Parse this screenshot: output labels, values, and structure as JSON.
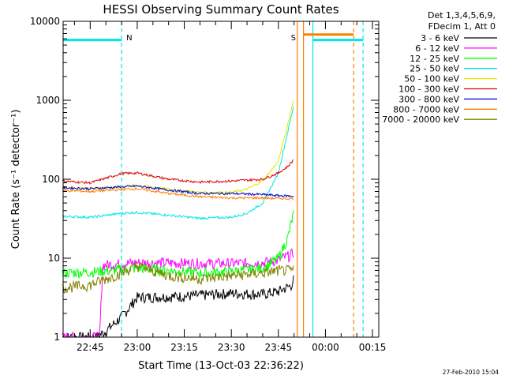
{
  "chart_data": {
    "type": "line",
    "title": "HESSI Observing Summary Count Rates",
    "xlabel": "Start Time (13-Oct-03 22:36:22)",
    "ylabel": "Count Rate (s⁻¹ detector⁻¹)",
    "y_scale": "log",
    "ylim": [
      1,
      10000
    ],
    "xlim": [
      "22:36:22",
      "00:17:00"
    ],
    "x_ticks": [
      "22:45",
      "23:00",
      "23:15",
      "23:30",
      "23:45",
      "00:00",
      "00:15"
    ],
    "y_ticks": [
      "1",
      "10",
      "100",
      "1000",
      "10000"
    ],
    "legend_header": [
      "Det 1,3,4,5,6,9,",
      "FDecim 1, Att 0"
    ],
    "legend_position": "right",
    "timestamp": "27-Feb-2010 15:04",
    "markers": [
      {
        "label": "N",
        "time": "22:55",
        "color": "#00e5e5"
      },
      {
        "label": "S",
        "time": "23:52",
        "color": "#ff8000"
      }
    ],
    "vertical_lines": [
      {
        "time": "22:55",
        "color": "#00e5e5",
        "style": "dashed"
      },
      {
        "time": "23:51",
        "color": "#ff8000",
        "style": "solid"
      },
      {
        "time": "23:53",
        "color": "#ff8000",
        "style": "solid"
      },
      {
        "time": "23:56",
        "color": "#00e5e5",
        "style": "solid"
      },
      {
        "time": "00:09",
        "color": "#ff8000",
        "style": "dashed"
      },
      {
        "time": "00:12",
        "color": "#00e5e5",
        "style": "dashed"
      }
    ],
    "flag_bars": [
      {
        "start": "22:36",
        "end": "22:55",
        "value": 5800,
        "color": "#00e5e5"
      },
      {
        "start": "23:53",
        "end": "00:09",
        "value": 6800,
        "color": "#ff8000"
      },
      {
        "start": "23:56",
        "end": "00:12",
        "value": 5800,
        "color": "#00e5e5"
      }
    ],
    "series": [
      {
        "name": "3 - 6 keV",
        "color": "#000000",
        "x": [
          "22:36",
          "22:47",
          "22:50",
          "22:55",
          "23:00",
          "23:15",
          "23:30",
          "23:40",
          "23:45",
          "23:49",
          "23:50"
        ],
        "y": [
          1,
          1,
          1.2,
          1.8,
          3.2,
          3.3,
          3.6,
          3.5,
          3.8,
          4.5,
          5.5
        ]
      },
      {
        "name": "6 - 12 keV",
        "color": "#ff00ff",
        "x": [
          "22:36",
          "22:48",
          "22:49",
          "23:00",
          "23:15",
          "23:30",
          "23:40",
          "23:45",
          "23:49",
          "23:50"
        ],
        "y": [
          1,
          1,
          8.2,
          8.8,
          8.7,
          8.6,
          8.8,
          9.5,
          11,
          12
        ]
      },
      {
        "name": "12 - 25 keV",
        "color": "#00ff00",
        "x": [
          "22:36",
          "22:45",
          "22:55",
          "23:00",
          "23:10",
          "23:20",
          "23:30",
          "23:40",
          "23:45",
          "23:48",
          "23:50"
        ],
        "y": [
          6.5,
          6.7,
          7.2,
          7.5,
          7.0,
          6.5,
          6.8,
          7.5,
          10,
          18,
          40
        ]
      },
      {
        "name": "25 - 50 keV",
        "color": "#00e5e5",
        "x": [
          "22:36",
          "22:45",
          "22:55",
          "23:00",
          "23:10",
          "23:20",
          "23:30",
          "23:35",
          "23:40",
          "23:45",
          "23:48",
          "23:50"
        ],
        "y": [
          34,
          33,
          37,
          38,
          35,
          32,
          33,
          37,
          50,
          120,
          400,
          900
        ]
      },
      {
        "name": "50 - 100 keV",
        "color": "#e5e500",
        "x": [
          "22:36",
          "22:45",
          "22:55",
          "23:00",
          "23:10",
          "23:20",
          "23:30",
          "23:35",
          "23:40",
          "23:45",
          "23:48",
          "23:50"
        ],
        "y": [
          78,
          76,
          80,
          83,
          75,
          68,
          68,
          75,
          95,
          170,
          500,
          1100
        ]
      },
      {
        "name": "100 - 300 keV",
        "color": "#dd0000",
        "x": [
          "22:36",
          "22:45",
          "22:55",
          "23:00",
          "23:10",
          "23:20",
          "23:30",
          "23:40",
          "23:45",
          "23:48",
          "23:50"
        ],
        "y": [
          95,
          90,
          118,
          120,
          100,
          92,
          95,
          100,
          120,
          145,
          180
        ]
      },
      {
        "name": "300 - 800 keV",
        "color": "#0000cc",
        "x": [
          "22:36",
          "22:45",
          "22:55",
          "23:00",
          "23:10",
          "23:20",
          "23:30",
          "23:40",
          "23:45",
          "23:50"
        ],
        "y": [
          78,
          76,
          80,
          82,
          73,
          66,
          66,
          64,
          62,
          61
        ]
      },
      {
        "name": "800 - 7000 keV",
        "color": "#ff8000",
        "x": [
          "22:36",
          "22:45",
          "22:55",
          "23:00",
          "23:10",
          "23:20",
          "23:30",
          "23:40",
          "23:45",
          "23:50"
        ],
        "y": [
          72,
          70,
          74,
          76,
          66,
          60,
          58,
          58,
          57,
          57
        ]
      },
      {
        "name": "7000 - 20000 keV",
        "color": "#808000",
        "x": [
          "22:36",
          "22:45",
          "22:55",
          "23:00",
          "23:10",
          "23:20",
          "23:30",
          "23:40",
          "23:45",
          "23:50"
        ],
        "y": [
          4.2,
          4.6,
          6.5,
          8.0,
          6.0,
          5.5,
          6.0,
          6.5,
          7.0,
          7.0
        ]
      }
    ]
  }
}
